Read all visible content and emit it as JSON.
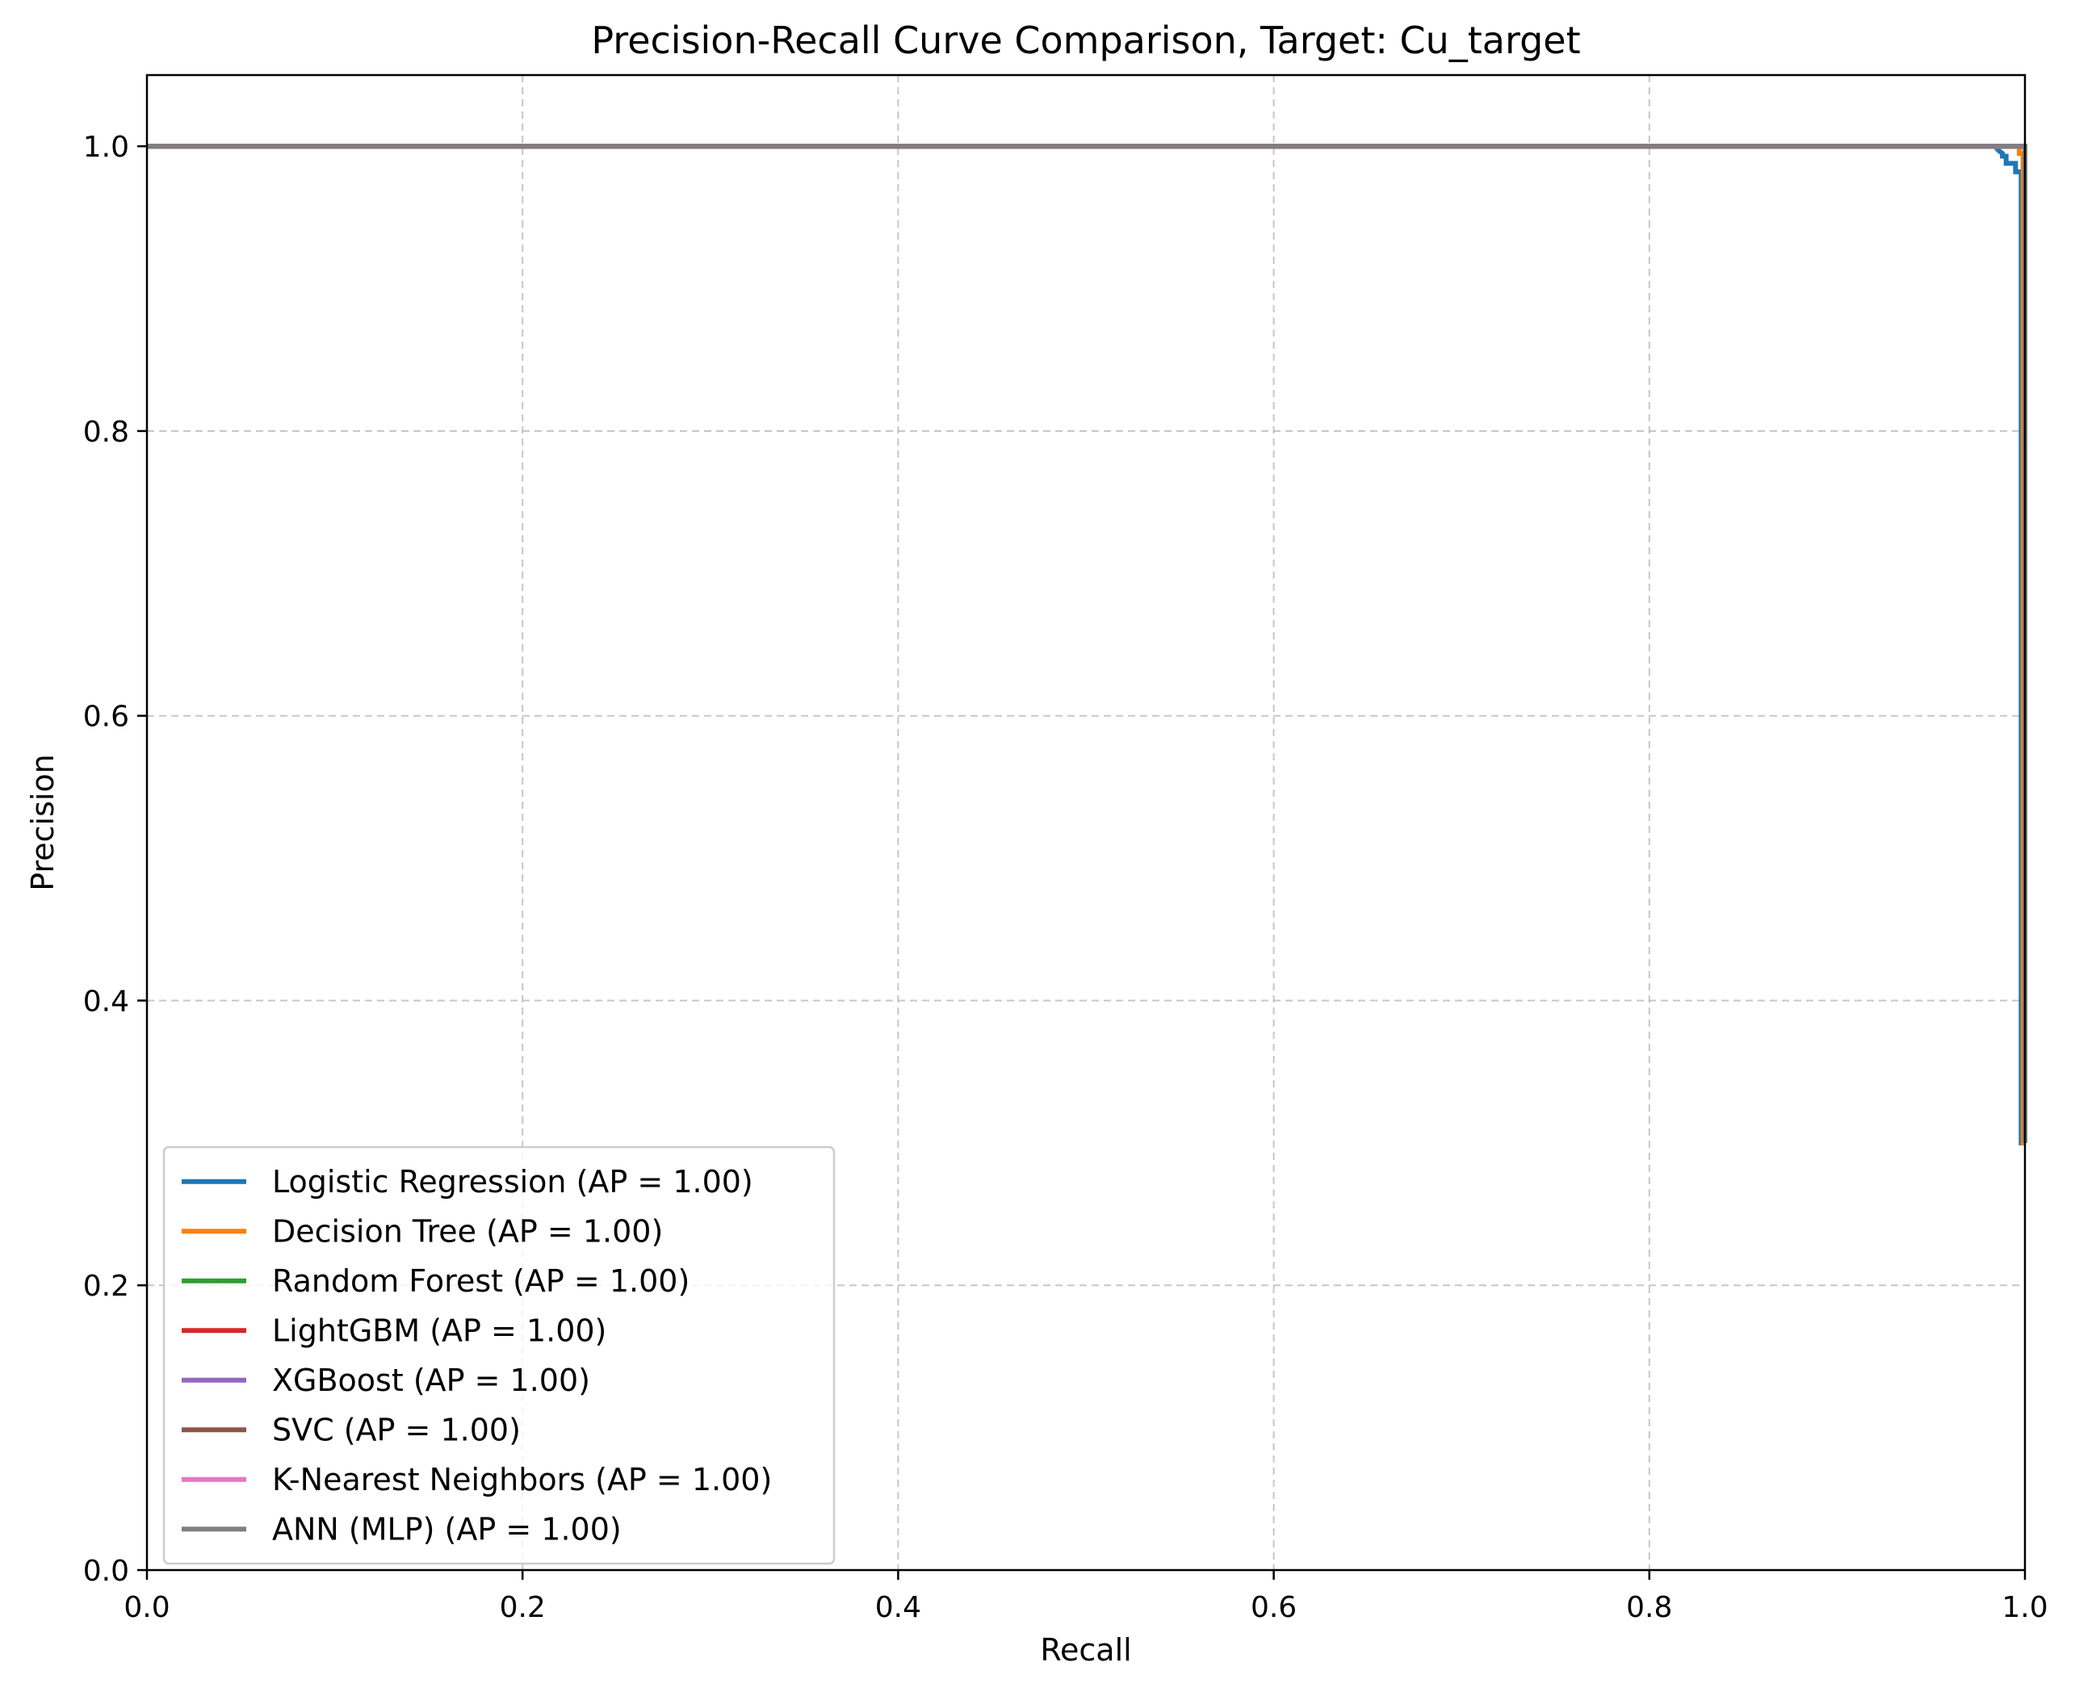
{
  "chart_data": {
    "type": "line",
    "title": "Precision-Recall Curve Comparison, Target: Cu_target",
    "xlabel": "Recall",
    "ylabel": "Precision",
    "xlim": [
      0.0,
      1.0
    ],
    "ylim": [
      0.0,
      1.05
    ],
    "xticks": [
      "0.0",
      "0.2",
      "0.4",
      "0.6",
      "0.8",
      "1.0"
    ],
    "yticks": [
      "0.0",
      "0.2",
      "0.4",
      "0.6",
      "0.8",
      "1.0"
    ],
    "grid": true,
    "legend_position": "lower-left",
    "series": [
      {
        "name": "Logistic Regression (AP = 1.00)",
        "color": "#1f77b4",
        "x": [
          0.0,
          0.984,
          0.986,
          0.988,
          0.988,
          0.99,
          0.99,
          0.995,
          0.995,
          0.998,
          0.998,
          1.0,
          1.0
        ],
        "y": [
          1.0,
          1.0,
          0.997,
          0.995,
          0.993,
          0.993,
          0.988,
          0.988,
          0.982,
          0.982,
          0.3,
          0.3,
          0.3
        ]
      },
      {
        "name": "Decision Tree (AP = 1.00)",
        "color": "#ff7f0e",
        "x": [
          0.0,
          0.997,
          0.997,
          0.999,
          0.999,
          1.0
        ],
        "y": [
          1.0,
          1.0,
          0.995,
          0.995,
          0.3,
          0.3
        ]
      },
      {
        "name": "Random Forest (AP = 1.00)",
        "color": "#2ca02c",
        "x": [
          0.0,
          1.0,
          1.0
        ],
        "y": [
          1.0,
          1.0,
          0.3
        ]
      },
      {
        "name": "LightGBM (AP = 1.00)",
        "color": "#d62728",
        "x": [
          0.0,
          1.0,
          1.0
        ],
        "y": [
          1.0,
          1.0,
          0.3
        ]
      },
      {
        "name": "XGBoost (AP = 1.00)",
        "color": "#9467bd",
        "x": [
          0.0,
          1.0,
          1.0
        ],
        "y": [
          1.0,
          1.0,
          0.3
        ]
      },
      {
        "name": "SVC (AP = 1.00)",
        "color": "#8c564b",
        "x": [
          0.0,
          1.0,
          1.0
        ],
        "y": [
          1.0,
          1.0,
          0.3
        ]
      },
      {
        "name": "K-Nearest Neighbors (AP = 1.00)",
        "color": "#e377c2",
        "x": [
          0.0,
          1.0,
          1.0
        ],
        "y": [
          1.0,
          1.0,
          0.3
        ]
      },
      {
        "name": "ANN (MLP) (AP = 1.00)",
        "color": "#7f7f7f",
        "x": [
          0.0,
          1.0,
          1.0
        ],
        "y": [
          1.0,
          1.0,
          0.3
        ]
      }
    ]
  }
}
